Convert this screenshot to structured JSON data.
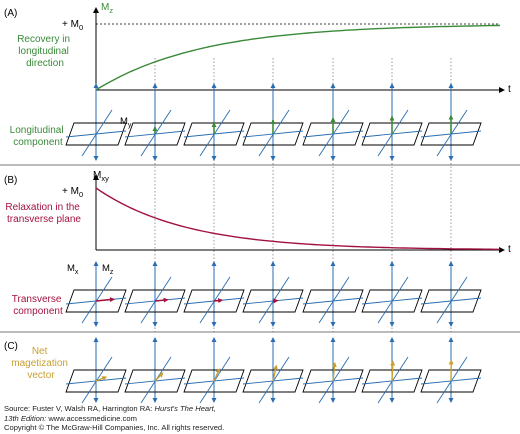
{
  "colors": {
    "green": "#3a8a3a",
    "crimson": "#a3123f",
    "blue": "#2a6db0",
    "gold": "#c8a030",
    "axis": "#000000",
    "divider": "#777777"
  },
  "panel_a": {
    "label": "(A)",
    "y_axis_label": "M",
    "y_axis_sub": "z",
    "level_label": "+ M",
    "level_sub": "0",
    "t_label": "t",
    "title_lines": [
      "Recovery in",
      "longitudinal",
      "direction"
    ],
    "component_lines": [
      "Longitudinal",
      "component"
    ],
    "vector_label": "M",
    "vector_sub": "y",
    "curve": "1 - exp(-t/T1)",
    "arrow_fractions": [
      0,
      0.35,
      0.55,
      0.7,
      0.8,
      0.87,
      0.92
    ]
  },
  "panel_b": {
    "label": "(B)",
    "y_axis_label": "M",
    "y_axis_sub": "xy",
    "level_label": "+ M",
    "level_sub": "0",
    "t_label": "t",
    "title_lines": [
      "Relaxation in the",
      "transverse plane"
    ],
    "component_lines": [
      "Transverse",
      "component"
    ],
    "mx_label": "M",
    "mx_sub": "x",
    "mz_label": "M",
    "mz_sub": "z",
    "curve": "exp(-t/T2)",
    "arrow_fractions": [
      1,
      0.7,
      0.45,
      0.25,
      0,
      0,
      0
    ]
  },
  "panel_c": {
    "label": "(C)",
    "title_lines": [
      "Net",
      "magetization",
      "vector"
    ],
    "arrow_fractions": [
      0.15,
      0.35,
      0.55,
      0.72,
      0.85,
      0.93,
      0.98
    ]
  },
  "credits": {
    "line1_pre": "Source: Fuster V, Walsh RA, Harrington RA: ",
    "line1_italic": "Hurst's The Heart,",
    "line2_italic": "13th Edition: ",
    "line2_rest": "www.accessmedicine.com",
    "line3": "Copyright © The McGraw-Hill Companies, Inc. All rights reserved."
  }
}
